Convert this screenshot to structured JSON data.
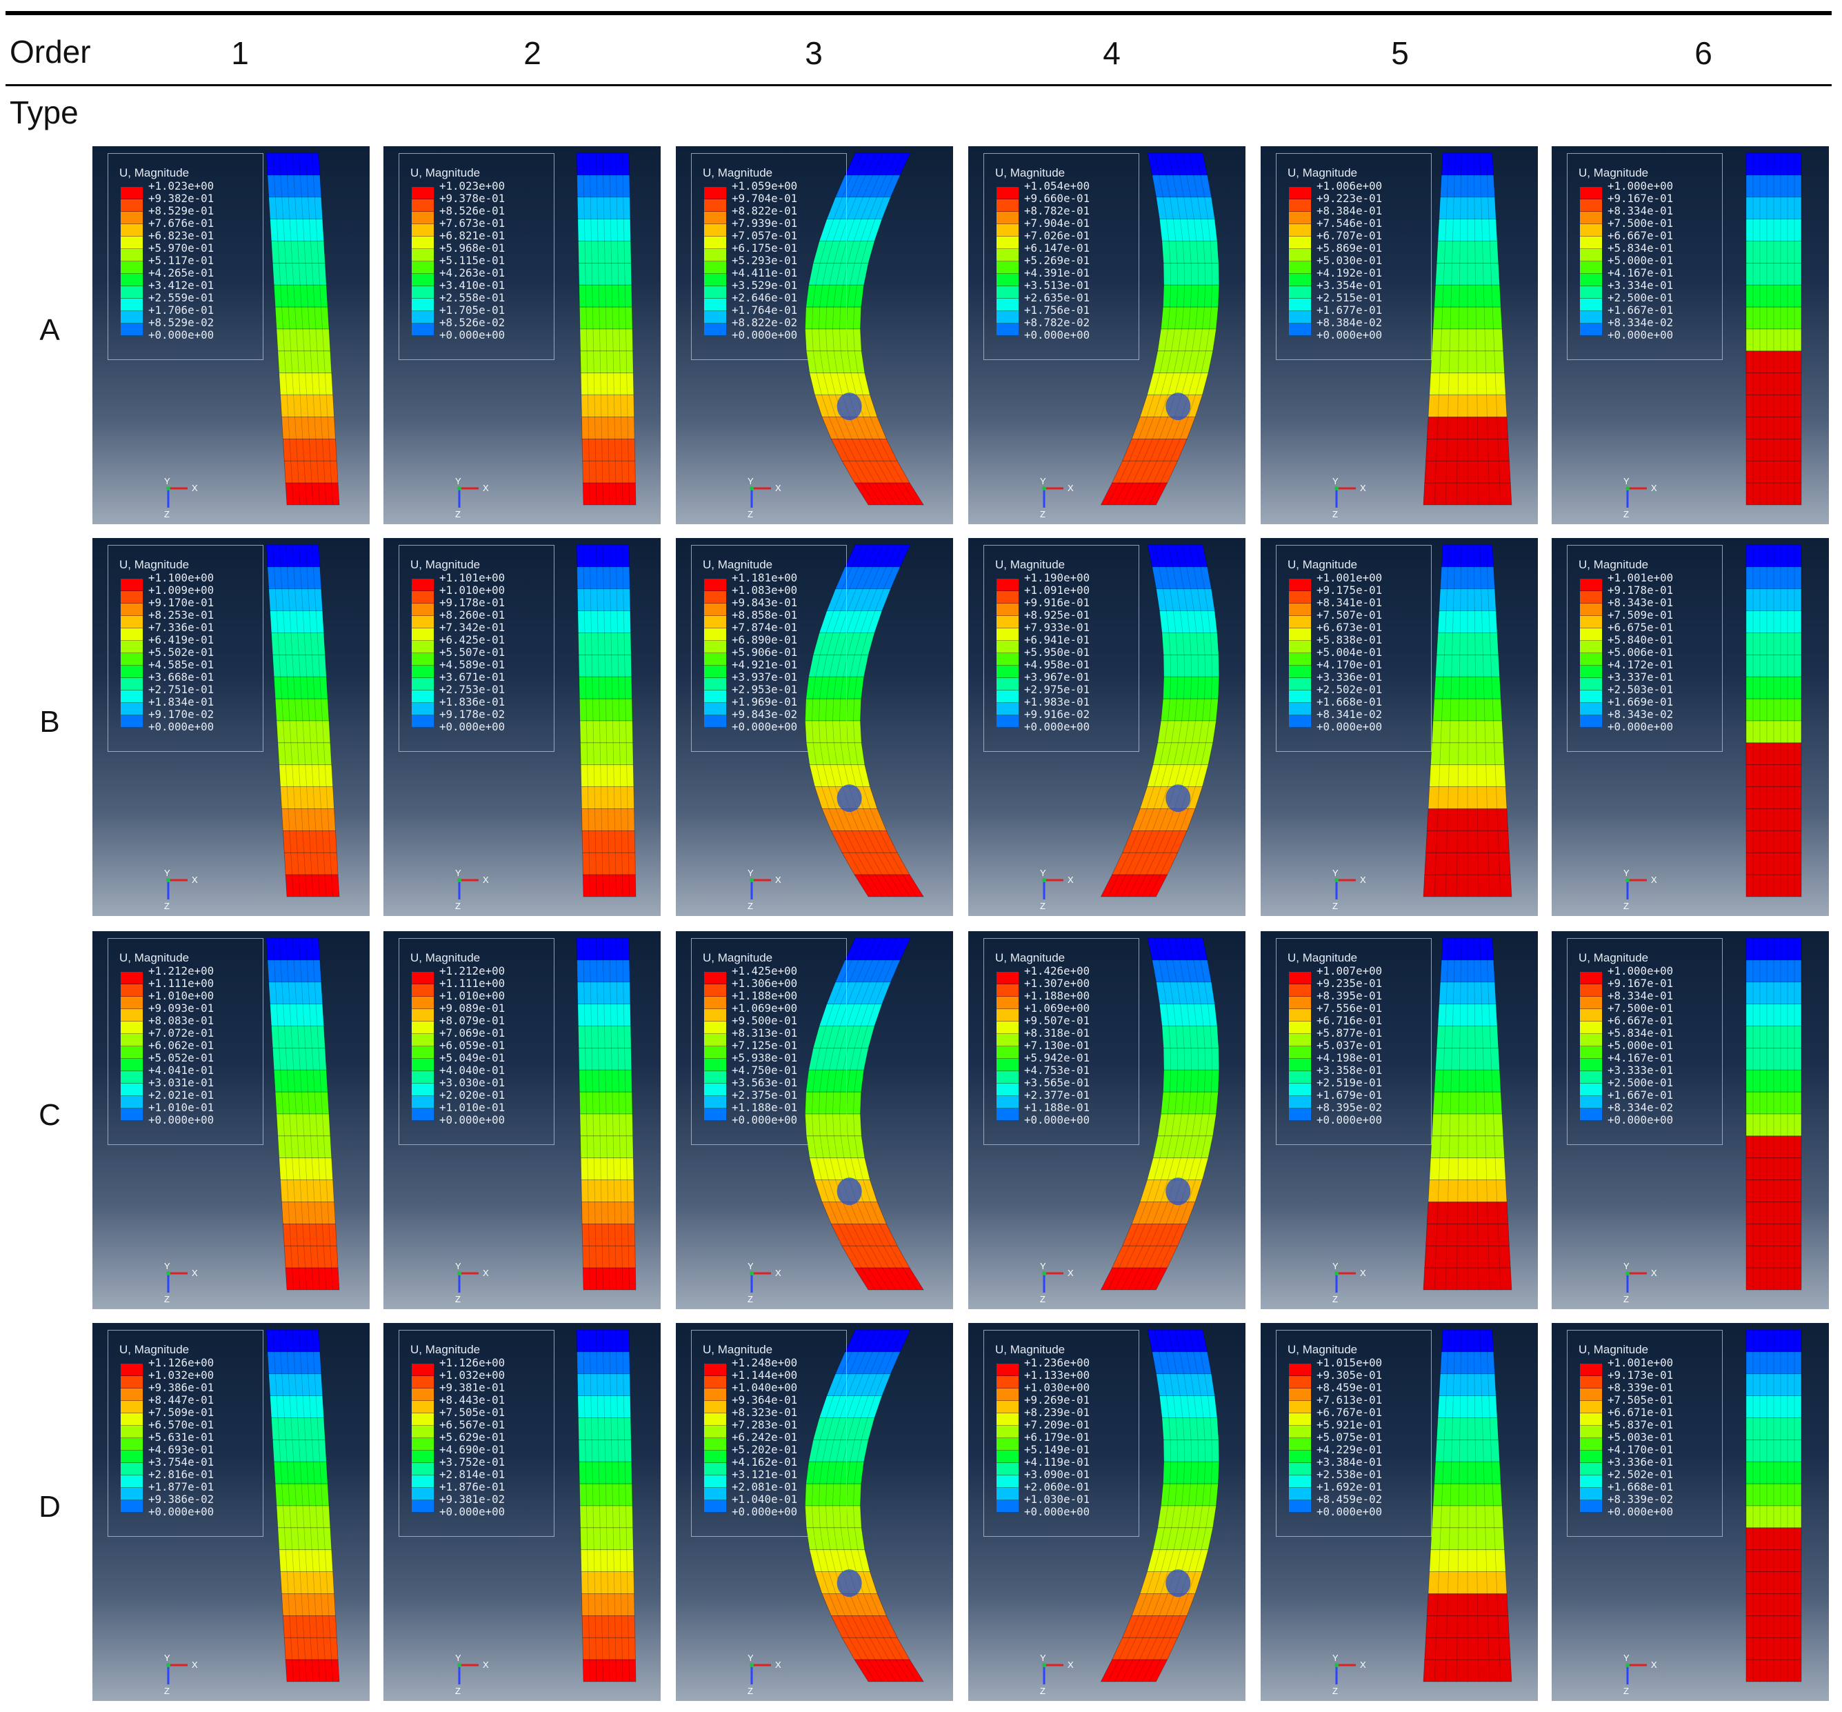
{
  "header": {
    "order_label": "Order",
    "type_label": "Type",
    "columns": [
      "1",
      "2",
      "3",
      "4",
      "5",
      "6"
    ]
  },
  "legend": {
    "title": "U, Magnitude",
    "colors": [
      "#ff0000",
      "#ff4a00",
      "#ff8c00",
      "#ffc400",
      "#e8ff00",
      "#a6ff00",
      "#4cff00",
      "#00ff31",
      "#00ff9a",
      "#00ffe9",
      "#00c2ff",
      "#0077ff",
      "#0000ff"
    ]
  },
  "triad": {
    "x": "X",
    "y": "Y",
    "z": "Z"
  },
  "rows": [
    {
      "label": "A",
      "panels": [
        {
          "shape": "straight-tilt",
          "values": [
            "+1.023e+00",
            "+9.382e-01",
            "+8.529e-01",
            "+7.676e-01",
            "+6.823e-01",
            "+5.970e-01",
            "+5.117e-01",
            "+4.265e-01",
            "+3.412e-01",
            "+2.559e-01",
            "+1.706e-01",
            "+8.529e-02",
            "+0.000e+00"
          ]
        },
        {
          "shape": "straight",
          "values": [
            "+1.023e+00",
            "+9.378e-01",
            "+8.526e-01",
            "+7.673e-01",
            "+6.821e-01",
            "+5.968e-01",
            "+5.115e-01",
            "+4.263e-01",
            "+3.410e-01",
            "+2.558e-01",
            "+1.705e-01",
            "+8.526e-02",
            "+0.000e+00"
          ]
        },
        {
          "shape": "bent-left",
          "values": [
            "+1.059e+00",
            "+9.704e-01",
            "+8.822e-01",
            "+7.939e-01",
            "+7.057e-01",
            "+6.175e-01",
            "+5.293e-01",
            "+4.411e-01",
            "+3.529e-01",
            "+2.646e-01",
            "+1.764e-01",
            "+8.822e-02",
            "+0.000e+00"
          ]
        },
        {
          "shape": "bent-right",
          "values": [
            "+1.054e+00",
            "+9.660e-01",
            "+8.782e-01",
            "+7.904e-01",
            "+7.026e-01",
            "+6.147e-01",
            "+5.269e-01",
            "+4.391e-01",
            "+3.513e-01",
            "+2.635e-01",
            "+1.756e-01",
            "+8.782e-02",
            "+0.000e+00"
          ]
        },
        {
          "shape": "taper-twist",
          "values": [
            "+1.006e+00",
            "+9.223e-01",
            "+8.384e-01",
            "+7.546e-01",
            "+6.707e-01",
            "+5.869e-01",
            "+5.030e-01",
            "+4.192e-01",
            "+3.354e-01",
            "+2.515e-01",
            "+1.677e-01",
            "+8.384e-02",
            "+0.000e+00"
          ]
        },
        {
          "shape": "straight-red",
          "values": [
            "+1.000e+00",
            "+9.167e-01",
            "+8.334e-01",
            "+7.500e-01",
            "+6.667e-01",
            "+5.834e-01",
            "+5.000e-01",
            "+4.167e-01",
            "+3.334e-01",
            "+2.500e-01",
            "+1.667e-01",
            "+8.334e-02",
            "+0.000e+00"
          ]
        }
      ]
    },
    {
      "label": "B",
      "panels": [
        {
          "shape": "straight-tilt",
          "values": [
            "+1.100e+00",
            "+1.009e+00",
            "+9.170e-01",
            "+8.253e-01",
            "+7.336e-01",
            "+6.419e-01",
            "+5.502e-01",
            "+4.585e-01",
            "+3.668e-01",
            "+2.751e-01",
            "+1.834e-01",
            "+9.170e-02",
            "+0.000e+00"
          ]
        },
        {
          "shape": "straight",
          "values": [
            "+1.101e+00",
            "+1.010e+00",
            "+9.178e-01",
            "+8.260e-01",
            "+7.342e-01",
            "+6.425e-01",
            "+5.507e-01",
            "+4.589e-01",
            "+3.671e-01",
            "+2.753e-01",
            "+1.836e-01",
            "+9.178e-02",
            "+0.000e+00"
          ]
        },
        {
          "shape": "bent-left",
          "values": [
            "+1.181e+00",
            "+1.083e+00",
            "+9.843e-01",
            "+8.858e-01",
            "+7.874e-01",
            "+6.890e-01",
            "+5.906e-01",
            "+4.921e-01",
            "+3.937e-01",
            "+2.953e-01",
            "+1.969e-01",
            "+9.843e-02",
            "+0.000e+00"
          ]
        },
        {
          "shape": "bent-right",
          "values": [
            "+1.190e+00",
            "+1.091e+00",
            "+9.916e-01",
            "+8.925e-01",
            "+7.933e-01",
            "+6.941e-01",
            "+5.950e-01",
            "+4.958e-01",
            "+3.967e-01",
            "+2.975e-01",
            "+1.983e-01",
            "+9.916e-02",
            "+0.000e+00"
          ]
        },
        {
          "shape": "taper-twist",
          "values": [
            "+1.001e+00",
            "+9.175e-01",
            "+8.341e-01",
            "+7.507e-01",
            "+6.673e-01",
            "+5.838e-01",
            "+5.004e-01",
            "+4.170e-01",
            "+3.336e-01",
            "+2.502e-01",
            "+1.668e-01",
            "+8.341e-02",
            "+0.000e+00"
          ]
        },
        {
          "shape": "straight-red",
          "values": [
            "+1.001e+00",
            "+9.178e-01",
            "+8.343e-01",
            "+7.509e-01",
            "+6.675e-01",
            "+5.840e-01",
            "+5.006e-01",
            "+4.172e-01",
            "+3.337e-01",
            "+2.503e-01",
            "+1.669e-01",
            "+8.343e-02",
            "+0.000e+00"
          ]
        }
      ]
    },
    {
      "label": "C",
      "panels": [
        {
          "shape": "straight-tilt",
          "values": [
            "+1.212e+00",
            "+1.111e+00",
            "+1.010e+00",
            "+9.093e-01",
            "+8.083e-01",
            "+7.072e-01",
            "+6.062e-01",
            "+5.052e-01",
            "+4.041e-01",
            "+3.031e-01",
            "+2.021e-01",
            "+1.010e-01",
            "+0.000e+00"
          ]
        },
        {
          "shape": "straight",
          "values": [
            "+1.212e+00",
            "+1.111e+00",
            "+1.010e+00",
            "+9.089e-01",
            "+8.079e-01",
            "+7.069e-01",
            "+6.059e-01",
            "+5.049e-01",
            "+4.040e-01",
            "+3.030e-01",
            "+2.020e-01",
            "+1.010e-01",
            "+0.000e+00"
          ]
        },
        {
          "shape": "bent-left",
          "values": [
            "+1.425e+00",
            "+1.306e+00",
            "+1.188e+00",
            "+1.069e+00",
            "+9.500e-01",
            "+8.313e-01",
            "+7.125e-01",
            "+5.938e-01",
            "+4.750e-01",
            "+3.563e-01",
            "+2.375e-01",
            "+1.188e-01",
            "+0.000e+00"
          ]
        },
        {
          "shape": "bent-right",
          "values": [
            "+1.426e+00",
            "+1.307e+00",
            "+1.188e+00",
            "+1.069e+00",
            "+9.507e-01",
            "+8.318e-01",
            "+7.130e-01",
            "+5.942e-01",
            "+4.753e-01",
            "+3.565e-01",
            "+2.377e-01",
            "+1.188e-01",
            "+0.000e+00"
          ]
        },
        {
          "shape": "taper-twist",
          "values": [
            "+1.007e+00",
            "+9.235e-01",
            "+8.395e-01",
            "+7.556e-01",
            "+6.716e-01",
            "+5.877e-01",
            "+5.037e-01",
            "+4.198e-01",
            "+3.358e-01",
            "+2.519e-01",
            "+1.679e-01",
            "+8.395e-02",
            "+0.000e+00"
          ]
        },
        {
          "shape": "straight-red",
          "values": [
            "+1.000e+00",
            "+9.167e-01",
            "+8.334e-01",
            "+7.500e-01",
            "+6.667e-01",
            "+5.834e-01",
            "+5.000e-01",
            "+4.167e-01",
            "+3.333e-01",
            "+2.500e-01",
            "+1.667e-01",
            "+8.334e-02",
            "+0.000e+00"
          ]
        }
      ]
    },
    {
      "label": "D",
      "panels": [
        {
          "shape": "straight-tilt",
          "values": [
            "+1.126e+00",
            "+1.032e+00",
            "+9.386e-01",
            "+8.447e-01",
            "+7.509e-01",
            "+6.570e-01",
            "+5.631e-01",
            "+4.693e-01",
            "+3.754e-01",
            "+2.816e-01",
            "+1.877e-01",
            "+9.386e-02",
            "+0.000e+00"
          ]
        },
        {
          "shape": "straight",
          "values": [
            "+1.126e+00",
            "+1.032e+00",
            "+9.381e-01",
            "+8.443e-01",
            "+7.505e-01",
            "+6.567e-01",
            "+5.629e-01",
            "+4.690e-01",
            "+3.752e-01",
            "+2.814e-01",
            "+1.876e-01",
            "+9.381e-02",
            "+0.000e+00"
          ]
        },
        {
          "shape": "bent-left",
          "values": [
            "+1.248e+00",
            "+1.144e+00",
            "+1.040e+00",
            "+9.364e-01",
            "+8.323e-01",
            "+7.283e-01",
            "+6.242e-01",
            "+5.202e-01",
            "+4.162e-01",
            "+3.121e-01",
            "+2.081e-01",
            "+1.040e-01",
            "+0.000e+00"
          ]
        },
        {
          "shape": "bent-right",
          "values": [
            "+1.236e+00",
            "+1.133e+00",
            "+1.030e+00",
            "+9.269e-01",
            "+8.239e-01",
            "+7.209e-01",
            "+6.179e-01",
            "+5.149e-01",
            "+4.119e-01",
            "+3.090e-01",
            "+2.060e-01",
            "+1.030e-01",
            "+0.000e+00"
          ]
        },
        {
          "shape": "taper-twist",
          "values": [
            "+1.015e+00",
            "+9.305e-01",
            "+8.459e-01",
            "+7.613e-01",
            "+6.767e-01",
            "+5.921e-01",
            "+5.075e-01",
            "+4.229e-01",
            "+3.384e-01",
            "+2.538e-01",
            "+1.692e-01",
            "+8.459e-02",
            "+0.000e+00"
          ]
        },
        {
          "shape": "straight-red",
          "values": [
            "+1.001e+00",
            "+9.173e-01",
            "+8.339e-01",
            "+7.505e-01",
            "+6.671e-01",
            "+5.837e-01",
            "+5.003e-01",
            "+4.170e-01",
            "+3.336e-01",
            "+2.502e-01",
            "+1.668e-01",
            "+8.339e-02",
            "+0.000e+00"
          ]
        }
      ]
    }
  ]
}
